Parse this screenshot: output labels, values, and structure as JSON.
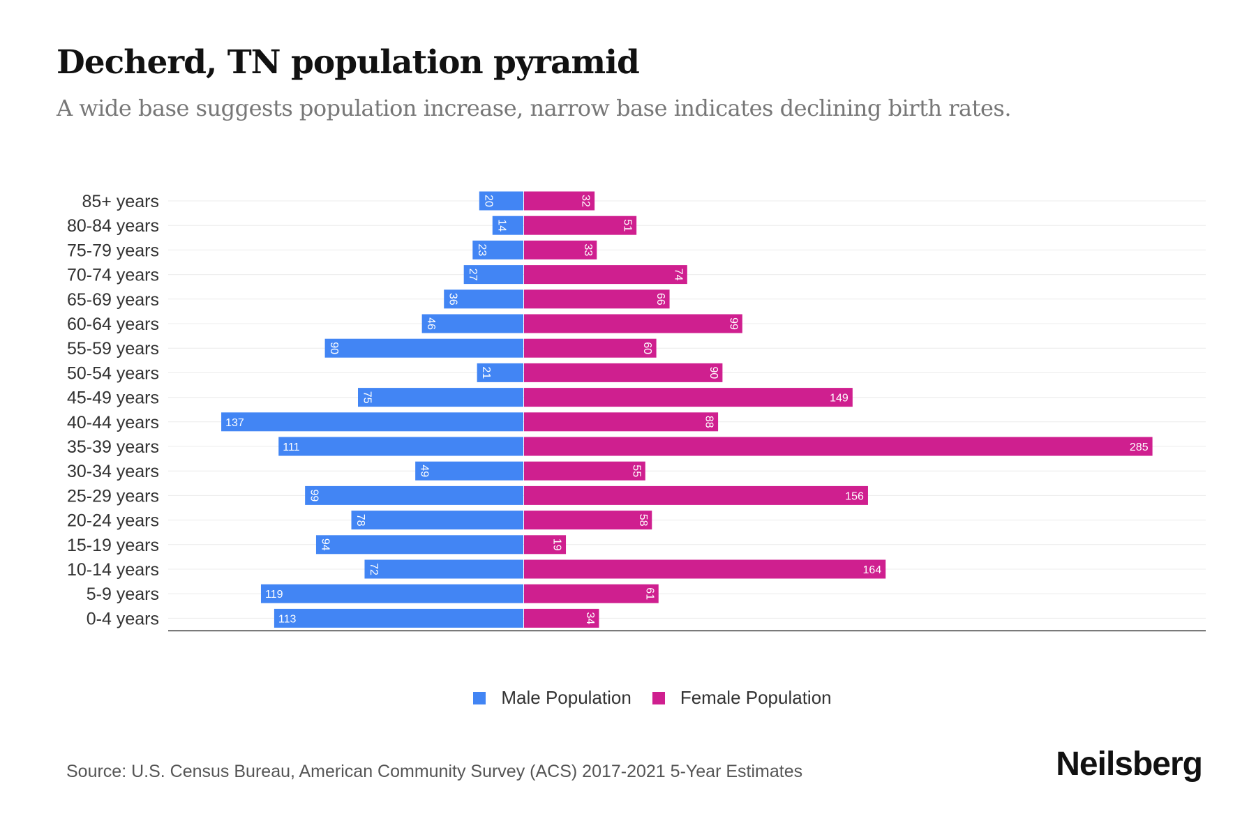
{
  "title": "Decherd, TN population pyramid",
  "subtitle": "A wide base suggests population increase, narrow base indicates declining birth rates.",
  "source": "Source: U.S. Census Bureau, American Community Survey (ACS) 2017-2021 5-Year Estimates",
  "logo": "Neilsberg",
  "colors": {
    "male": "#4285f4",
    "female": "#cf1f8f"
  },
  "chart_data": {
    "type": "bar",
    "orientation": "horizontal-pyramid",
    "title": "Decherd, TN population pyramid",
    "categories": [
      "85+ years",
      "80-84 years",
      "75-79 years",
      "70-74 years",
      "65-69 years",
      "60-64 years",
      "55-59 years",
      "50-54 years",
      "45-49 years",
      "40-44 years",
      "35-39 years",
      "30-34 years",
      "25-29 years",
      "20-24 years",
      "15-19 years",
      "10-14 years",
      "5-9 years",
      "0-4 years"
    ],
    "series": [
      {
        "name": "Male Population",
        "values": [
          20,
          14,
          23,
          27,
          36,
          46,
          90,
          21,
          75,
          137,
          111,
          49,
          99,
          78,
          94,
          72,
          119,
          113
        ]
      },
      {
        "name": "Female Population",
        "values": [
          32,
          51,
          33,
          74,
          66,
          99,
          60,
          90,
          149,
          88,
          285,
          55,
          156,
          58,
          19,
          164,
          61,
          34
        ]
      }
    ],
    "legend": "bottom-center",
    "grid": true
  }
}
